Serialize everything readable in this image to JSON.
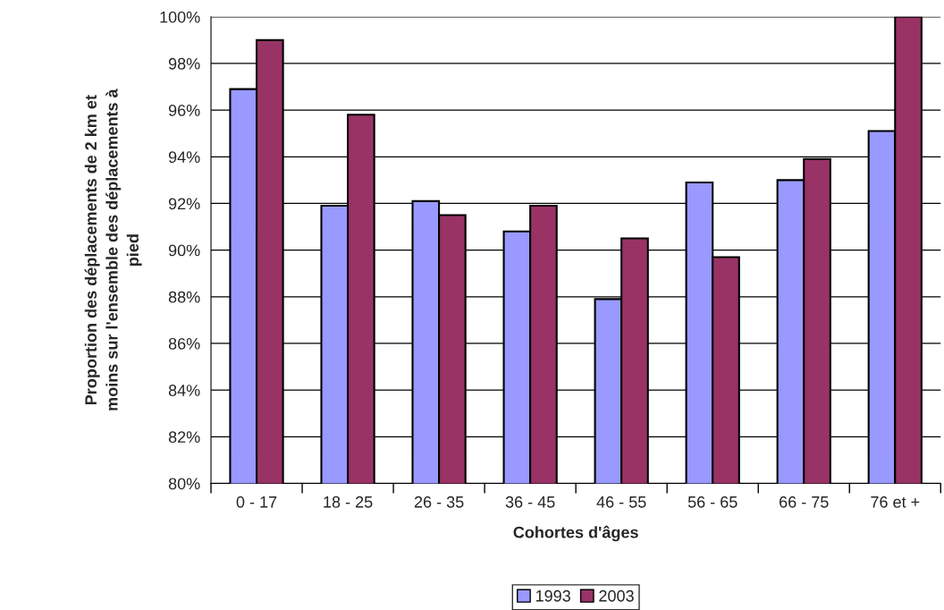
{
  "chart_data": {
    "type": "bar",
    "xlabel": "Cohortes d'âges",
    "ylabel": "Proportion des déplacements de 2 km et\nmoins sur l'ensemble des déplacements à\npied",
    "categories": [
      "0 - 17",
      "18 - 25",
      "26 - 35",
      "36 - 45",
      "46 - 55",
      "56 - 65",
      "66 - 75",
      "76 et +"
    ],
    "series": [
      {
        "name": "1993",
        "color": "#9999ff",
        "values": [
          96.9,
          91.9,
          92.1,
          90.8,
          87.9,
          92.9,
          93.0,
          95.1
        ]
      },
      {
        "name": "2003",
        "color": "#993366",
        "values": [
          99.0,
          95.8,
          91.5,
          91.9,
          90.5,
          89.7,
          93.9,
          100.0
        ]
      }
    ],
    "ylim": [
      80,
      100
    ],
    "yticks": [
      {
        "value": 80,
        "label": "80%"
      },
      {
        "value": 82,
        "label": "82%"
      },
      {
        "value": 84,
        "label": "84%"
      },
      {
        "value": 86,
        "label": "86%"
      },
      {
        "value": 88,
        "label": "88%"
      },
      {
        "value": 90,
        "label": "90%"
      },
      {
        "value": 92,
        "label": "92%"
      },
      {
        "value": 94,
        "label": "94%"
      },
      {
        "value": 96,
        "label": "96%"
      },
      {
        "value": 98,
        "label": "98%"
      },
      {
        "value": 100,
        "label": "100%"
      }
    ],
    "grid": "y",
    "legend": "bottom"
  }
}
